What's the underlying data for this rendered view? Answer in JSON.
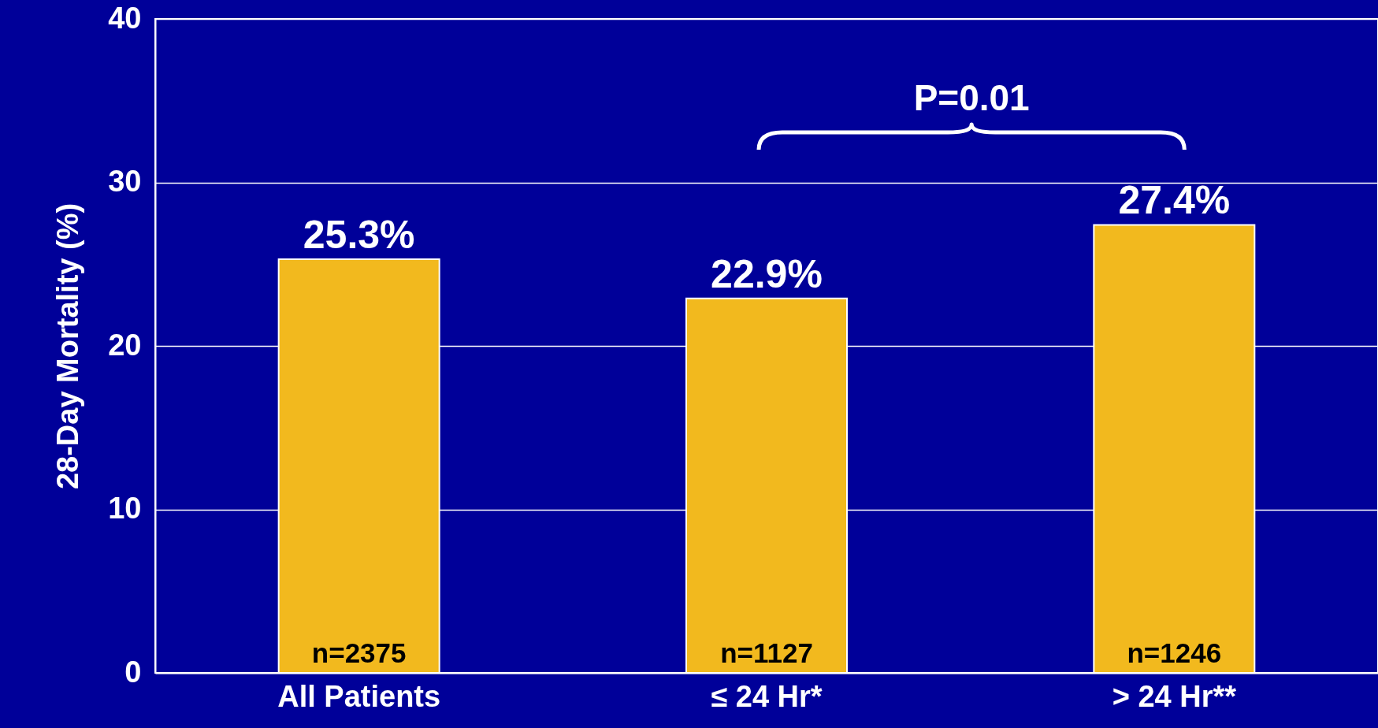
{
  "chart_data": {
    "type": "bar",
    "ylabel": "28-Day Mortality (%)",
    "categories": [
      "All Patients",
      "≤ 24 Hr*",
      "> 24 Hr**"
    ],
    "values": [
      25.3,
      22.9,
      27.4
    ],
    "color": "#f2b91e",
    "value_labels": [
      "25.3%",
      "22.9%",
      "27.4%"
    ],
    "ylim": [
      0,
      40
    ],
    "yticks": [
      0,
      10,
      20,
      30,
      40
    ],
    "grid": "y",
    "annotations": [
      "P=0.01",
      {
        "text": "n=2375",
        "x": "All Patients",
        "y": 0
      },
      {
        "text": "n=1127",
        "x": "≤ 24 Hr*",
        "y": 0
      },
      {
        "text": "n=1246",
        "x": "> 24 Hr**",
        "y": 0
      }
    ]
  }
}
